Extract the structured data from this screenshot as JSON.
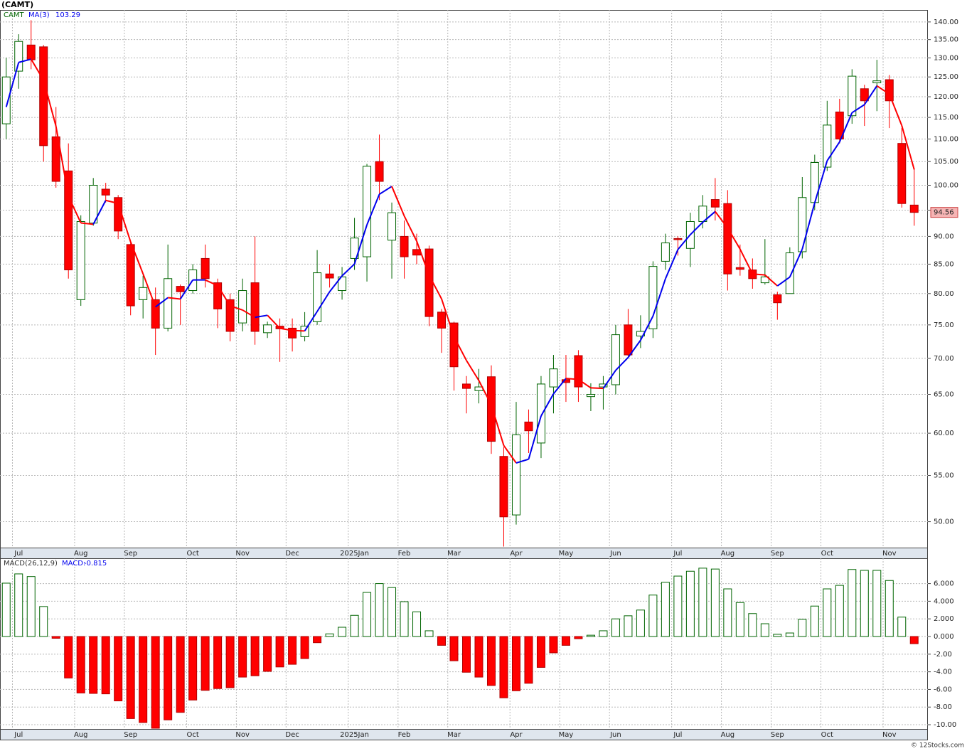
{
  "chart_data": [
    {
      "type": "candlestick",
      "title": "(CAMT)",
      "name": "CAMT",
      "log_scale": true,
      "grid": true,
      "up_color": "#006400",
      "down_color": "#ff0000",
      "categories": [
        null,
        "Jul",
        null,
        null,
        null,
        null,
        "Aug",
        null,
        null,
        null,
        "Sep",
        null,
        null,
        null,
        null,
        "Oct",
        null,
        null,
        null,
        "Nov",
        null,
        null,
        null,
        "Dec",
        null,
        null,
        null,
        null,
        "2025Jan",
        null,
        null,
        null,
        "Feb",
        null,
        null,
        null,
        "Mar",
        null,
        null,
        null,
        null,
        "Apr",
        null,
        null,
        null,
        "May",
        null,
        null,
        null,
        "Jun",
        null,
        null,
        null,
        null,
        "Jul",
        null,
        null,
        null,
        "Aug",
        null,
        null,
        null,
        "Sep",
        null,
        null,
        null,
        "Oct",
        null,
        null,
        null,
        null,
        "Nov",
        null,
        null
      ],
      "open": [
        113.5,
        126.5,
        133.5,
        133,
        110.5,
        103,
        79,
        92.5,
        99.2,
        97.5,
        88.5,
        79,
        79,
        74.5,
        81.2,
        80.5,
        86,
        81.8,
        79,
        75.3,
        81.8,
        73.8,
        74.8,
        74.5,
        73.2,
        75.5,
        83.3,
        80.5,
        86,
        86.3,
        105,
        89.3,
        90,
        87.6,
        87.7,
        77,
        75.3,
        66.4,
        65.5,
        67.4,
        57.2,
        50.7,
        61.4,
        58.8,
        66,
        67,
        70.4,
        64.7,
        66,
        66.3,
        75,
        73.3,
        74.4,
        85.5,
        89.6,
        87.8,
        92.8,
        97.1,
        96.3,
        84.4,
        84,
        81.8,
        79.8,
        80,
        87.2,
        96.5,
        103.8,
        116.3,
        115.4,
        122,
        123.5,
        124.3,
        109,
        96
      ],
      "high": [
        130,
        136.5,
        140.5,
        133.5,
        117.5,
        109,
        94,
        101.5,
        100.5,
        98,
        89,
        83,
        81,
        88.5,
        81.5,
        85,
        88.5,
        82.5,
        80,
        82.5,
        90,
        75.5,
        76,
        76,
        77,
        87.5,
        85,
        84.5,
        93.5,
        104.5,
        111,
        96.5,
        93,
        90.5,
        88.3,
        77.5,
        75.5,
        67.5,
        68.5,
        69,
        58.3,
        64,
        63,
        67.5,
        70.5,
        70.5,
        71.2,
        66.5,
        67.5,
        75,
        77.5,
        76.5,
        85.5,
        90.5,
        90,
        94.5,
        98,
        101.5,
        99,
        88.5,
        86,
        89.5,
        80.3,
        88,
        101.7,
        106.5,
        119,
        119.5,
        127,
        123,
        129.5,
        125.5,
        112.5,
        103.5
      ],
      "low": [
        110,
        122,
        127,
        105,
        99.5,
        82.5,
        78,
        92,
        96.5,
        89.5,
        76.5,
        76,
        70.5,
        74,
        75,
        80,
        81,
        74.5,
        72.5,
        74,
        72,
        73,
        69.5,
        71,
        72.5,
        75,
        81,
        79,
        84,
        82,
        97,
        82.5,
        82.5,
        85,
        74.8,
        70.8,
        65.5,
        62.5,
        63.8,
        57.5,
        47.5,
        49.7,
        57.6,
        57,
        62.5,
        64,
        64,
        62.8,
        63,
        65,
        70.3,
        71.5,
        73,
        84,
        86.5,
        84.5,
        91.5,
        93,
        80.5,
        83,
        80.8,
        81.5,
        75.8,
        80,
        86,
        95,
        103,
        109,
        113.5,
        113,
        116.5,
        112.5,
        95.5,
        92
      ],
      "close": [
        125,
        134.5,
        129.5,
        108.5,
        100.8,
        84,
        92.8,
        100,
        98,
        91,
        78,
        81,
        74.5,
        82.5,
        80.3,
        84,
        82.5,
        77.5,
        74,
        80.5,
        74,
        75,
        74.4,
        73,
        74.8,
        83.5,
        82.6,
        82.8,
        89.7,
        104,
        100.8,
        94.5,
        86.3,
        86.6,
        76.3,
        74.5,
        68.8,
        65.8,
        66,
        59,
        50.5,
        59.8,
        60.3,
        66.4,
        68.5,
        66.6,
        66,
        65,
        66.4,
        73.5,
        70.5,
        74,
        84.6,
        88.8,
        89.4,
        92.8,
        95.8,
        95.6,
        83.3,
        84.1,
        82.5,
        82.8,
        78.5,
        87,
        97.5,
        104.8,
        113.2,
        110,
        125.2,
        119,
        124,
        119,
        96.3,
        94.56
      ],
      "ma": {
        "name": "MA(3)",
        "up_color": "#0000ee",
        "down_color": "#ff0000",
        "values": [
          117.5,
          128.8,
          129.67,
          124.17,
          112.93,
          97.77,
          92.53,
          92.27,
          96.93,
          96.33,
          89,
          83.33,
          77.83,
          79.33,
          79.1,
          82.27,
          82.27,
          81.33,
          78,
          77.33,
          76.17,
          76.5,
          74.47,
          74.13,
          74.07,
          77.1,
          80.3,
          82.97,
          85.03,
          92.17,
          98.17,
          99.77,
          93.87,
          89.13,
          83.07,
          79.13,
          73.2,
          69.7,
          66.87,
          63.6,
          58.5,
          56.43,
          56.87,
          62.17,
          65.07,
          67.17,
          67.03,
          65.87,
          65.8,
          68.3,
          70.13,
          72.67,
          76.37,
          82.47,
          87.6,
          90.33,
          92.67,
          94.73,
          91.57,
          87.67,
          83.3,
          83.13,
          81.27,
          82.77,
          87.67,
          96.43,
          105.17,
          109.33,
          116.13,
          118.07,
          122.73,
          120.67,
          113.1,
          103.29
        ]
      },
      "ylim": [
        47.4,
        143.5
      ],
      "yticks": [
        {
          "value": 50,
          "label": "50.00"
        },
        {
          "value": 55,
          "label": "55.00"
        },
        {
          "value": 60,
          "label": "60.00"
        },
        {
          "value": 65,
          "label": "65.00"
        },
        {
          "value": 70,
          "label": "70.00"
        },
        {
          "value": 75,
          "label": "75.00"
        },
        {
          "value": 80,
          "label": "80.00"
        },
        {
          "value": 85,
          "label": "85.00"
        },
        {
          "value": 90,
          "label": "90.00"
        },
        {
          "value": 95,
          "label": "95.00"
        },
        {
          "value": 100,
          "label": "100.00"
        },
        {
          "value": 105,
          "label": "105.00"
        },
        {
          "value": 110,
          "label": "110.00"
        },
        {
          "value": 115,
          "label": "115.00"
        },
        {
          "value": 120,
          "label": "120.00"
        },
        {
          "value": 125,
          "label": "125.00"
        },
        {
          "value": 130,
          "label": "130.00"
        },
        {
          "value": 135,
          "label": "135.00"
        },
        {
          "value": 140,
          "label": "140.00"
        }
      ]
    },
    {
      "type": "bar",
      "name": "MACD(26,12,9)",
      "value_name": "MACD:",
      "grid": true,
      "up_color": "#006400",
      "down_color": "#ff0000",
      "categories": [
        null,
        "Jul",
        null,
        null,
        null,
        null,
        "Aug",
        null,
        null,
        null,
        "Sep",
        null,
        null,
        null,
        null,
        "Oct",
        null,
        null,
        null,
        "Nov",
        null,
        null,
        null,
        "Dec",
        null,
        null,
        null,
        null,
        "2025Jan",
        null,
        null,
        null,
        "Feb",
        null,
        null,
        null,
        "Mar",
        null,
        null,
        null,
        null,
        "Apr",
        null,
        null,
        null,
        "May",
        null,
        null,
        null,
        "Jun",
        null,
        null,
        null,
        null,
        "Jul",
        null,
        null,
        null,
        "Aug",
        null,
        null,
        null,
        "Sep",
        null,
        null,
        null,
        "Oct",
        null,
        null,
        null,
        null,
        "Nov",
        null,
        null
      ],
      "values": [
        6.05,
        7.1,
        6.8,
        3.4,
        -0.2,
        -4.7,
        -6.4,
        -6.45,
        -6.5,
        -7.3,
        -9.3,
        -9.75,
        -10.4,
        -9.45,
        -8.6,
        -7.2,
        -6.1,
        -5.9,
        -5.8,
        -4.6,
        -4.45,
        -3.95,
        -3.45,
        -3.15,
        -2.5,
        -0.7,
        0.3,
        1.05,
        2.4,
        5,
        6,
        5.55,
        3.95,
        2.8,
        0.65,
        -1,
        -2.75,
        -4.05,
        -4.6,
        -5.55,
        -6.95,
        -6.15,
        -5.3,
        -3.5,
        -1.85,
        -1,
        -0.25,
        0.15,
        0.65,
        2,
        2.35,
        3,
        4.7,
        6.15,
        6.85,
        7.4,
        7.75,
        7.65,
        5.4,
        3.85,
        2.6,
        1.45,
        0.25,
        0.4,
        1.95,
        3.45,
        5.4,
        5.8,
        7.6,
        7.5,
        7.5,
        6.35,
        2.2,
        -0.815
      ],
      "ylim": [
        -10.48,
        8.87
      ],
      "yticks": [
        {
          "value": -10,
          "label": "-10.00"
        },
        {
          "value": -8,
          "label": "-8.00"
        },
        {
          "value": -6,
          "label": "-6.00"
        },
        {
          "value": -4,
          "label": "-4.00"
        },
        {
          "value": -2,
          "label": "-2.00"
        },
        {
          "value": 0,
          "label": "0.000"
        },
        {
          "value": 2,
          "label": "2.000"
        },
        {
          "value": 4,
          "label": "4.000"
        },
        {
          "value": 6,
          "label": "6.000"
        }
      ]
    }
  ],
  "footer": "© 12Stocks.com"
}
